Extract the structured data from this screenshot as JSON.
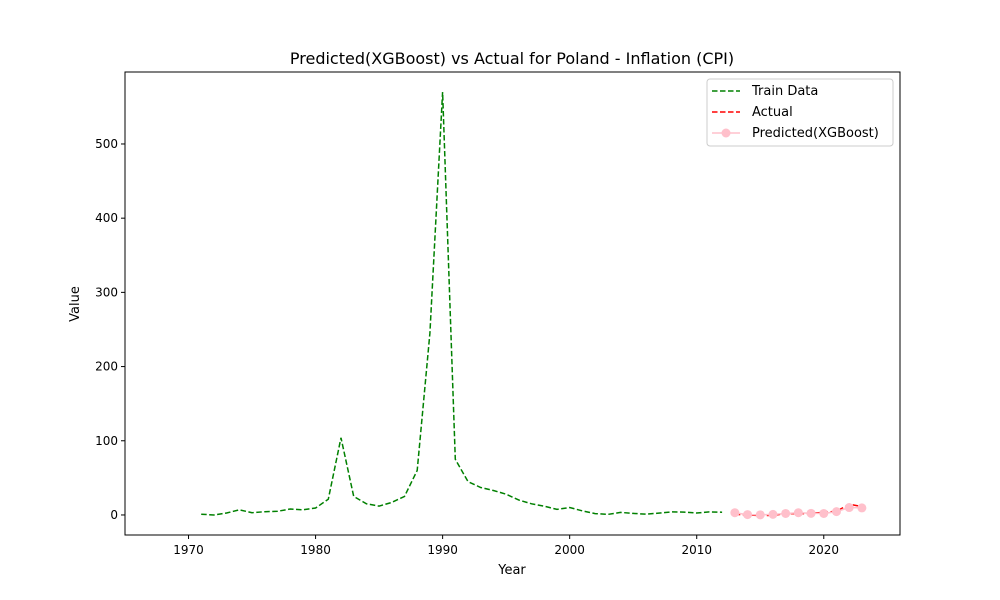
{
  "chart_data": {
    "type": "line",
    "title": "Predicted(XGBoost) vs Actual for Poland - Inflation (CPI)",
    "xlabel": "Year",
    "ylabel": "Value",
    "xlim": [
      1965,
      2026
    ],
    "ylim": [
      -27,
      597
    ],
    "x_ticks": [
      1970,
      1980,
      1990,
      2000,
      2010,
      2020
    ],
    "y_ticks": [
      0,
      100,
      200,
      300,
      400,
      500
    ],
    "grid": false,
    "legend_position": "top-right",
    "series": [
      {
        "name": "Train Data",
        "style": "dashed",
        "color": "#008000",
        "x": [
          1971,
          1972,
          1973,
          1974,
          1975,
          1976,
          1977,
          1978,
          1979,
          1980,
          1981,
          1982,
          1983,
          1984,
          1985,
          1986,
          1987,
          1988,
          1989,
          1990,
          1991,
          1992,
          1993,
          1994,
          1995,
          1996,
          1997,
          1998,
          1999,
          2000,
          2001,
          2002,
          2003,
          2004,
          2005,
          2006,
          2007,
          2008,
          2009,
          2010,
          2011,
          2012
        ],
        "y": [
          1.0,
          0.0,
          2.6,
          7.0,
          3.0,
          4.4,
          4.9,
          8.1,
          7.0,
          9.4,
          21.2,
          104.0,
          25.0,
          15.0,
          12.0,
          17.0,
          25.0,
          60.0,
          245.0,
          570.0,
          75.0,
          45.0,
          37.0,
          33.0,
          28.0,
          20.0,
          15.0,
          11.8,
          7.5,
          10.1,
          5.5,
          1.9,
          0.8,
          3.5,
          2.1,
          1.0,
          2.5,
          4.2,
          3.8,
          2.7,
          4.2,
          3.7
        ]
      },
      {
        "name": "Actual",
        "style": "dashed",
        "color": "#ff0000",
        "x": [
          2013,
          2014,
          2015,
          2016,
          2017,
          2018,
          2019,
          2020,
          2021,
          2022,
          2023
        ],
        "y": [
          0.9,
          0.0,
          -0.9,
          -0.6,
          2.0,
          1.6,
          2.2,
          3.4,
          5.1,
          14.4,
          11.4
        ]
      },
      {
        "name": "Predicted(XGBoost)",
        "style": "solid-markers",
        "color": "#ffc0cb",
        "x": [
          2013,
          2014,
          2015,
          2016,
          2017,
          2018,
          2019,
          2020,
          2021,
          2022,
          2023
        ],
        "y": [
          3.0,
          0.5,
          0.2,
          0.8,
          2.0,
          3.0,
          2.2,
          2.0,
          4.5,
          10.0,
          9.5
        ]
      }
    ]
  }
}
